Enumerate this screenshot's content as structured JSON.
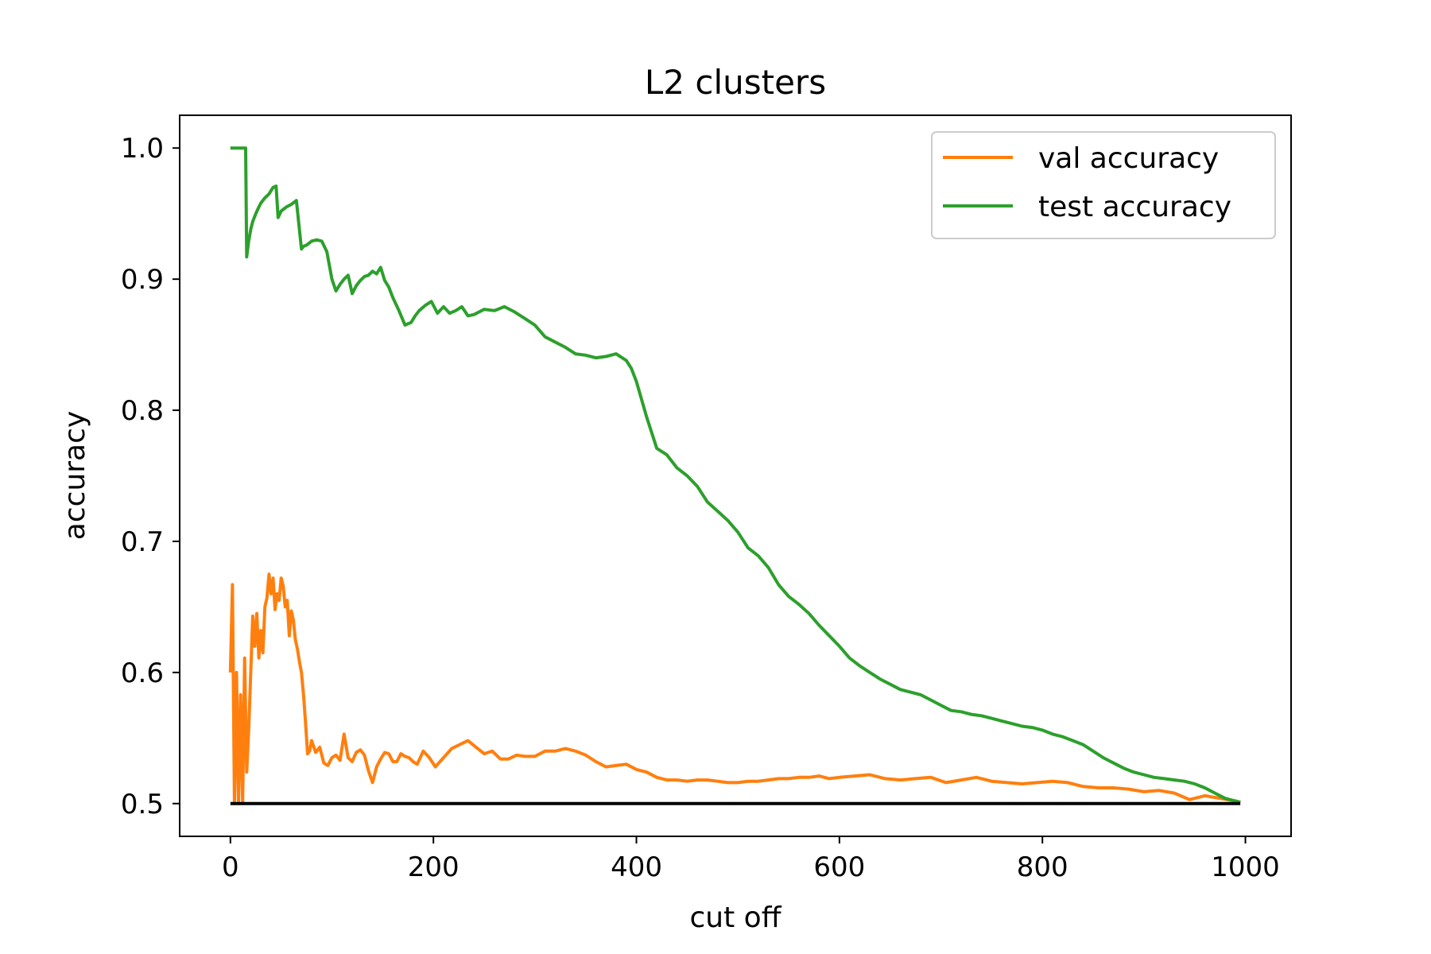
{
  "chart_data": {
    "type": "line",
    "title": "L2 clusters",
    "xlabel": "cut off",
    "ylabel": "accuracy",
    "xlim": [
      -50,
      1045
    ],
    "ylim": [
      0.475,
      1.025
    ],
    "xticks": [
      0,
      200,
      400,
      600,
      800,
      1000
    ],
    "yticks": [
      0.5,
      0.6,
      0.7,
      0.8,
      0.9,
      1.0
    ],
    "xtick_labels": [
      "0",
      "200",
      "400",
      "600",
      "800",
      "1000"
    ],
    "ytick_labels": [
      "0.5",
      "0.6",
      "0.7",
      "0.8",
      "0.9",
      "1.0"
    ],
    "grid": false,
    "legend_position": "upper-right",
    "series": [
      {
        "name": "val accuracy",
        "color": "#ff7f0e",
        "x": [
          0,
          2,
          4,
          6,
          8,
          10,
          12,
          14,
          16,
          18,
          20,
          22,
          24,
          26,
          28,
          30,
          32,
          34,
          36,
          38,
          40,
          42,
          44,
          46,
          48,
          50,
          52,
          54,
          56,
          58,
          60,
          62,
          64,
          66,
          68,
          70,
          72,
          74,
          76,
          78,
          80,
          84,
          88,
          92,
          96,
          100,
          104,
          108,
          112,
          116,
          120,
          124,
          128,
          132,
          136,
          140,
          144,
          148,
          152,
          156,
          160,
          164,
          168,
          172,
          176,
          180,
          184,
          190,
          196,
          202,
          210,
          218,
          226,
          234,
          242,
          250,
          258,
          266,
          274,
          282,
          290,
          300,
          310,
          320,
          330,
          340,
          350,
          360,
          370,
          380,
          390,
          400,
          410,
          420,
          430,
          440,
          450,
          460,
          470,
          480,
          490,
          500,
          510,
          520,
          530,
          540,
          550,
          560,
          570,
          580,
          590,
          600,
          615,
          630,
          645,
          660,
          675,
          690,
          705,
          720,
          735,
          750,
          765,
          780,
          795,
          810,
          825,
          840,
          855,
          870,
          885,
          900,
          915,
          930,
          945,
          960,
          975,
          990,
          995
        ],
        "y": [
          0.6,
          0.667,
          0.5,
          0.6,
          0.5,
          0.583,
          0.5,
          0.611,
          0.524,
          0.556,
          0.6,
          0.643,
          0.62,
          0.645,
          0.611,
          0.632,
          0.615,
          0.65,
          0.657,
          0.675,
          0.66,
          0.672,
          0.648,
          0.66,
          0.655,
          0.672,
          0.666,
          0.65,
          0.655,
          0.628,
          0.647,
          0.64,
          0.625,
          0.618,
          0.608,
          0.6,
          0.583,
          0.562,
          0.538,
          0.54,
          0.548,
          0.539,
          0.543,
          0.531,
          0.529,
          0.535,
          0.537,
          0.533,
          0.553,
          0.535,
          0.532,
          0.539,
          0.541,
          0.537,
          0.525,
          0.516,
          0.528,
          0.534,
          0.539,
          0.538,
          0.532,
          0.532,
          0.538,
          0.536,
          0.535,
          0.532,
          0.53,
          0.54,
          0.535,
          0.528,
          0.535,
          0.542,
          0.545,
          0.548,
          0.543,
          0.538,
          0.54,
          0.534,
          0.534,
          0.537,
          0.536,
          0.536,
          0.54,
          0.54,
          0.542,
          0.54,
          0.537,
          0.532,
          0.528,
          0.529,
          0.53,
          0.526,
          0.524,
          0.52,
          0.518,
          0.518,
          0.517,
          0.518,
          0.518,
          0.517,
          0.516,
          0.516,
          0.517,
          0.517,
          0.518,
          0.519,
          0.519,
          0.52,
          0.52,
          0.521,
          0.519,
          0.52,
          0.521,
          0.522,
          0.519,
          0.518,
          0.519,
          0.52,
          0.516,
          0.518,
          0.52,
          0.517,
          0.516,
          0.515,
          0.516,
          0.517,
          0.516,
          0.513,
          0.512,
          0.512,
          0.511,
          0.509,
          0.51,
          0.508,
          0.503,
          0.506,
          0.504,
          0.502,
          0.501
        ]
      },
      {
        "name": "test accuracy",
        "color": "#2ca02c",
        "x": [
          0,
          5,
          10,
          15,
          16,
          18,
          20,
          22,
          25,
          28,
          30,
          34,
          38,
          42,
          45,
          47,
          50,
          55,
          60,
          65,
          70,
          72,
          75,
          80,
          85,
          90,
          95,
          100,
          104,
          108,
          112,
          116,
          120,
          124,
          128,
          132,
          136,
          140,
          144,
          148,
          152,
          156,
          160,
          166,
          172,
          178,
          182,
          186,
          192,
          198,
          204,
          210,
          216,
          222,
          228,
          234,
          240,
          250,
          260,
          270,
          280,
          290,
          300,
          310,
          320,
          330,
          340,
          350,
          360,
          370,
          380,
          390,
          395,
          400,
          410,
          420,
          430,
          440,
          450,
          460,
          470,
          480,
          490,
          500,
          510,
          520,
          530,
          540,
          550,
          560,
          570,
          580,
          590,
          600,
          610,
          620,
          630,
          640,
          650,
          660,
          670,
          680,
          690,
          700,
          710,
          720,
          730,
          740,
          750,
          760,
          770,
          780,
          790,
          800,
          810,
          820,
          830,
          840,
          850,
          860,
          870,
          880,
          890,
          900,
          910,
          920,
          930,
          940,
          950,
          960,
          970,
          980,
          990,
          995
        ],
        "y": [
          1.0,
          1.0,
          1.0,
          1.0,
          0.917,
          0.929,
          0.938,
          0.944,
          0.95,
          0.955,
          0.958,
          0.962,
          0.965,
          0.97,
          0.971,
          0.947,
          0.952,
          0.955,
          0.957,
          0.96,
          0.923,
          0.925,
          0.926,
          0.929,
          0.93,
          0.929,
          0.921,
          0.9,
          0.891,
          0.896,
          0.9,
          0.903,
          0.889,
          0.895,
          0.899,
          0.902,
          0.903,
          0.906,
          0.904,
          0.909,
          0.899,
          0.894,
          0.886,
          0.876,
          0.865,
          0.867,
          0.872,
          0.876,
          0.88,
          0.883,
          0.874,
          0.879,
          0.874,
          0.876,
          0.879,
          0.872,
          0.873,
          0.877,
          0.876,
          0.879,
          0.875,
          0.87,
          0.865,
          0.856,
          0.852,
          0.848,
          0.843,
          0.842,
          0.84,
          0.841,
          0.843,
          0.838,
          0.832,
          0.822,
          0.795,
          0.771,
          0.766,
          0.756,
          0.75,
          0.742,
          0.73,
          0.723,
          0.716,
          0.707,
          0.695,
          0.689,
          0.68,
          0.667,
          0.658,
          0.652,
          0.645,
          0.636,
          0.628,
          0.62,
          0.611,
          0.605,
          0.6,
          0.595,
          0.591,
          0.587,
          0.585,
          0.583,
          0.579,
          0.575,
          0.571,
          0.57,
          0.568,
          0.567,
          0.565,
          0.563,
          0.561,
          0.559,
          0.558,
          0.556,
          0.553,
          0.551,
          0.548,
          0.545,
          0.54,
          0.535,
          0.531,
          0.527,
          0.524,
          0.522,
          0.52,
          0.519,
          0.518,
          0.517,
          0.515,
          0.512,
          0.508,
          0.504,
          0.502,
          0.501
        ]
      }
    ],
    "baseline": {
      "x": [
        0,
        995
      ],
      "y": [
        0.5,
        0.5
      ],
      "color": "#000000"
    }
  }
}
